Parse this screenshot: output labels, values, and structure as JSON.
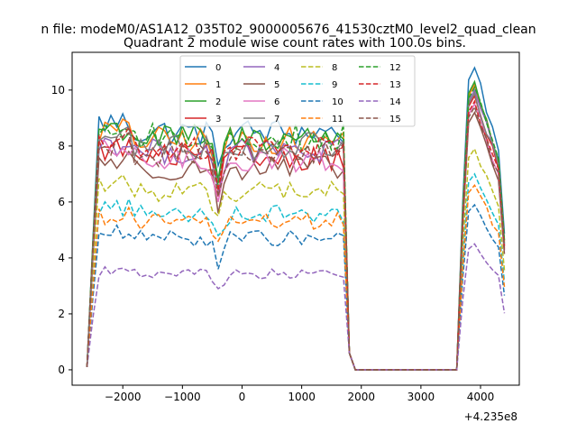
{
  "chart_data": {
    "type": "line",
    "suptitle": "n file: modeM0/AS1A12_035T02_9000005676_41530cztM0_level2_quad_clean",
    "title": "Quadrant 2 module wise count rates with 100.0s bins.",
    "xlabel": "",
    "ylabel": "",
    "x_offset_label": "+4.235e8",
    "xlim": [
      -2850,
      4650
    ],
    "ylim": [
      -0.55,
      11.35
    ],
    "x_ticks": [
      -2000,
      -1000,
      0,
      1000,
      2000,
      3000,
      4000
    ],
    "x_tick_labels": [
      "−2000",
      "−1000",
      "0",
      "1000",
      "2000",
      "3000",
      "4000"
    ],
    "y_ticks": [
      0,
      2,
      4,
      6,
      8,
      10
    ],
    "y_tick_labels": [
      "0",
      "2",
      "4",
      "6",
      "8",
      "10"
    ],
    "grid": false,
    "legend_placement": "top-center",
    "segments_x": {
      "seg1": [
        -2600,
        1700,
        100
      ],
      "gap": [
        1700,
        3600
      ],
      "seg2": [
        3600,
        4400,
        100
      ]
    },
    "series": [
      {
        "name": "0",
        "color": "#1f77b4",
        "dash": "solid",
        "base": 8.5,
        "dip_to": 7.3,
        "peak": 10.8
      },
      {
        "name": "1",
        "color": "#ff7f0e",
        "dash": "solid",
        "base": 8.2,
        "dip_to": 6.7,
        "peak": 10.2
      },
      {
        "name": "2",
        "color": "#2ca02c",
        "dash": "solid",
        "base": 8.3,
        "dip_to": 6.8,
        "peak": 10.3
      },
      {
        "name": "3",
        "color": "#d62728",
        "dash": "solid",
        "base": 7.6,
        "dip_to": 6.2,
        "peak": 9.8
      },
      {
        "name": "4",
        "color": "#9467bd",
        "dash": "solid",
        "base": 7.8,
        "dip_to": 6.4,
        "peak": 10.0
      },
      {
        "name": "5",
        "color": "#8c564b",
        "dash": "solid",
        "base": 7.2,
        "dip_to": 5.6,
        "peak": 9.2
      },
      {
        "name": "6",
        "color": "#e377c2",
        "dash": "solid",
        "base": 7.5,
        "dip_to": 6.0,
        "peak": 9.5
      },
      {
        "name": "7",
        "color": "#7f7f7f",
        "dash": "solid",
        "base": 8.0,
        "dip_to": 6.7,
        "peak": 9.9
      },
      {
        "name": "8",
        "color": "#bcbd22",
        "dash": "dashed",
        "base": 6.4,
        "dip_to": 5.5,
        "peak": 7.9
      },
      {
        "name": "9",
        "color": "#17becf",
        "dash": "dashed",
        "base": 5.6,
        "dip_to": 4.8,
        "peak": 7.0
      },
      {
        "name": "10",
        "color": "#1f77b4",
        "dash": "dashed",
        "base": 4.7,
        "dip_to": 3.6,
        "peak": 5.9
      },
      {
        "name": "11",
        "color": "#ff7f0e",
        "dash": "dashed",
        "base": 5.3,
        "dip_to": 4.6,
        "peak": 6.6
      },
      {
        "name": "12",
        "color": "#2ca02c",
        "dash": "dashed",
        "base": 8.3,
        "dip_to": 6.6,
        "peak": 10.1
      },
      {
        "name": "13",
        "color": "#d62728",
        "dash": "dashed",
        "base": 7.9,
        "dip_to": 6.4,
        "peak": 9.6
      },
      {
        "name": "14",
        "color": "#9467bd",
        "dash": "dashed",
        "base": 3.4,
        "dip_to": 2.9,
        "peak": 4.5
      },
      {
        "name": "15",
        "color": "#8c564b",
        "dash": "dashed",
        "base": 7.7,
        "dip_to": 6.2,
        "peak": 9.4
      }
    ]
  }
}
